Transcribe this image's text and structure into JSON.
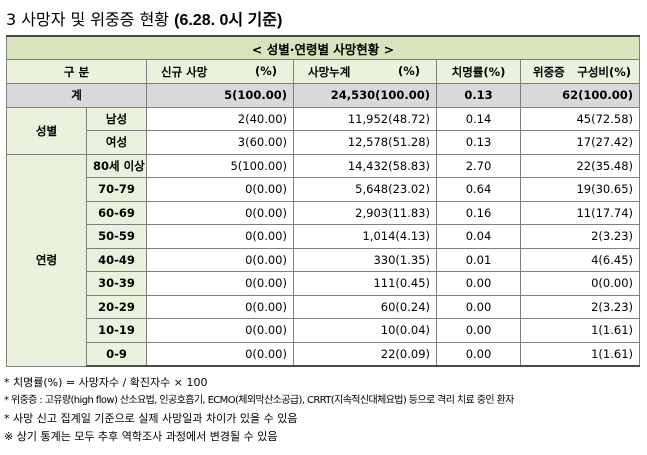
{
  "title": {
    "number": "3",
    "text": "사망자 및 위중증 현황",
    "date": "(6.28. 0시 기준)"
  },
  "table": {
    "banner": "< 성별·연령별 사망현황 >",
    "headers": {
      "category": "구 분",
      "new_deaths": "신규 사망",
      "new_deaths_unit": "(%)",
      "cumulative": "사망누계",
      "cumulative_unit": "(%)",
      "fatality": "치명률(%)",
      "severe": "위중증",
      "severe_unit": "구성비(%)"
    },
    "total": {
      "label": "계",
      "new_deaths": "5(100.00)",
      "cumulative": "24,530(100.00)",
      "fatality": "0.13",
      "severe": "62(100.00)"
    },
    "gender_group": "성별",
    "gender": [
      {
        "label": "남성",
        "new_deaths": "2(40.00)",
        "cumulative": "11,952(48.72)",
        "fatality": "0.14",
        "severe": "45(72.58)"
      },
      {
        "label": "여성",
        "new_deaths": "3(60.00)",
        "cumulative": "12,578(51.28)",
        "fatality": "0.13",
        "severe": "17(27.42)"
      }
    ],
    "age_group": "연령",
    "ages": [
      {
        "label": "80세 이상",
        "new_deaths": "5(100.00)",
        "cumulative": "14,432(58.83)",
        "fatality": "2.70",
        "severe": "22(35.48)"
      },
      {
        "label": "70-79",
        "new_deaths": "0(0.00)",
        "cumulative": "5,648(23.02)",
        "fatality": "0.64",
        "severe": "19(30.65)"
      },
      {
        "label": "60-69",
        "new_deaths": "0(0.00)",
        "cumulative": "2,903(11.83)",
        "fatality": "0.16",
        "severe": "11(17.74)"
      },
      {
        "label": "50-59",
        "new_deaths": "0(0.00)",
        "cumulative": "1,014(4.13)",
        "fatality": "0.04",
        "severe": "2(3.23)"
      },
      {
        "label": "40-49",
        "new_deaths": "0(0.00)",
        "cumulative": "330(1.35)",
        "fatality": "0.01",
        "severe": "4(6.45)"
      },
      {
        "label": "30-39",
        "new_deaths": "0(0.00)",
        "cumulative": "111(0.45)",
        "fatality": "0.00",
        "severe": "0(0.00)"
      },
      {
        "label": "20-29",
        "new_deaths": "0(0.00)",
        "cumulative": "60(0.24)",
        "fatality": "0.00",
        "severe": "2(3.23)"
      },
      {
        "label": "10-19",
        "new_deaths": "0(0.00)",
        "cumulative": "10(0.04)",
        "fatality": "0.00",
        "severe": "1(1.61)"
      },
      {
        "label": "0-9",
        "new_deaths": "0(0.00)",
        "cumulative": "22(0.09)",
        "fatality": "0.00",
        "severe": "1(1.61)"
      }
    ]
  },
  "notes": [
    "* 치명률(%) = 사망자수 / 확진자수 × 100",
    "* 위중증 : 고유량(high flow) 산소요법, 인공호흡기, ECMO(체외막산소공급), CRRT(지속적신대체요법) 등으로 격리 치료 중인 환자",
    "* 사망 신고 집계일 기준으로 실제 사망일과 차이가 있을 수 있음",
    "※ 상기 통계는 모두 추후 역학조사 과정에서 변경될 수 있음"
  ]
}
